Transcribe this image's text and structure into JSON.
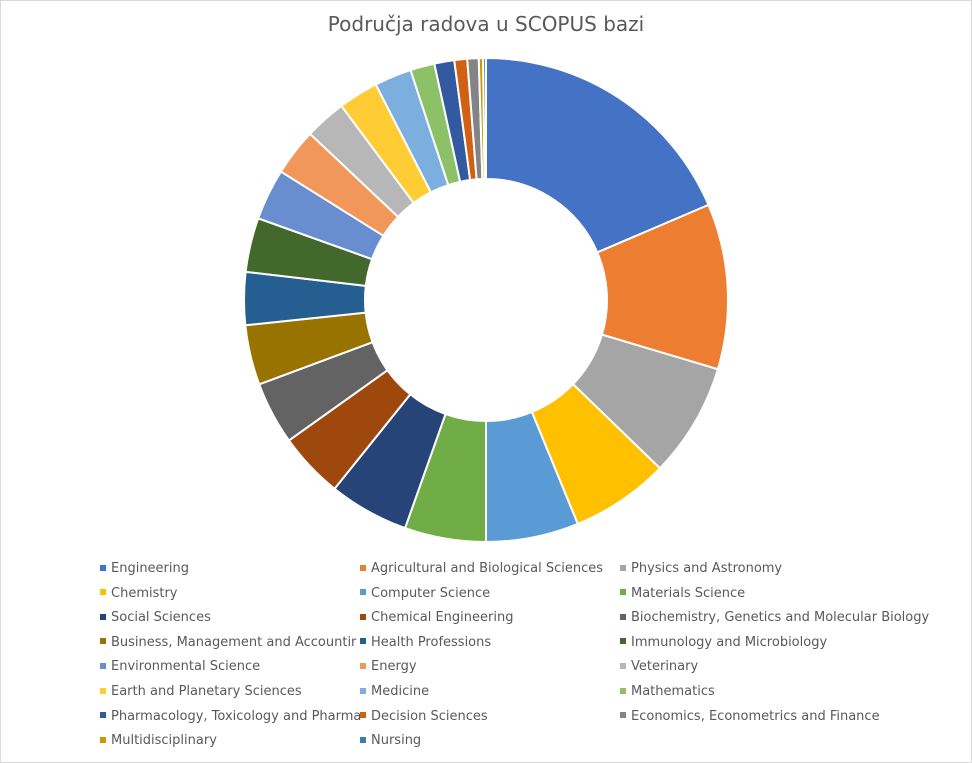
{
  "chart_data": {
    "type": "pie",
    "variant": "doughnut",
    "title": "Područja radova u SCOPUS bazi",
    "legend_position": "bottom",
    "categories": [
      "Engineering",
      "Agricultural and Biological Sciences",
      "Physics and Astronomy",
      "Chemistry",
      "Computer Science",
      "Materials Science",
      "Social Sciences",
      "Chemical Engineering",
      "Biochemistry, Genetics and Molecular Biology",
      "Business, Management and Accounting",
      "Health Professions",
      "Immunology and Microbiology",
      "Environmental Science",
      "Energy",
      "Veterinary",
      "Earth and Planetary Sciences",
      "Medicine",
      "Mathematics",
      "Pharmacology, Toxicology and Pharmaceutics",
      "Decision Sciences",
      "Economics, Econometrics and Finance",
      "Multidisciplinary",
      "Nursing"
    ],
    "values": [
      19.5,
      11.6,
      8.0,
      6.9,
      6.5,
      5.7,
      5.6,
      4.6,
      4.4,
      4.2,
      3.7,
      3.8,
      3.6,
      3.3,
      2.9,
      2.8,
      2.6,
      1.7,
      1.4,
      0.9,
      0.8,
      0.3,
      0.2
    ],
    "colors": [
      "#4472c4",
      "#ed7d31",
      "#a5a5a5",
      "#ffc000",
      "#5b9bd5",
      "#70ad47",
      "#264478",
      "#9e480e",
      "#636363",
      "#997300",
      "#255e91",
      "#43682b",
      "#698ed0",
      "#f1975a",
      "#b7b7b7",
      "#ffcd33",
      "#7cafdd",
      "#8cc168",
      "#335aa1",
      "#d26012",
      "#848484",
      "#cc9a00",
      "#3c7cba"
    ]
  },
  "legend_display_labels": [
    "Engineering",
    "Agricultural and Biological Sciences",
    "Physics and Astronomy",
    "Chemistry",
    "Computer Science",
    "Materials Science",
    "Social Sciences",
    "Chemical Engineering",
    "Biochemistry, Genetics and Molecular Biology",
    "Business, Management and Accountir",
    "Health Professions",
    "Immunology and Microbiology",
    "Environmental Science",
    "Energy",
    "Veterinary",
    "Earth and Planetary Sciences",
    "Medicine",
    "Mathematics",
    "Pharmacology, Toxicology and Pharma",
    "Decision Sciences",
    "Economics, Econometrics and Finance",
    "Multidisciplinary",
    "Nursing"
  ]
}
